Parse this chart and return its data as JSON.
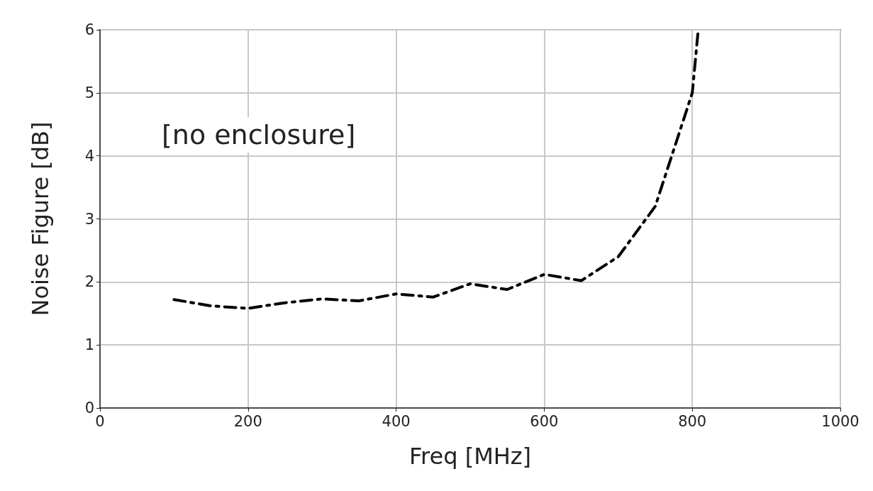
{
  "chart_data": {
    "type": "line",
    "xlabel": "Freq [MHz]",
    "ylabel": "Noise Figure [dB]",
    "annotations": [
      "[no enclosure]"
    ],
    "x": [
      100,
      150,
      200,
      250,
      300,
      350,
      400,
      450,
      500,
      550,
      600,
      650,
      700,
      750,
      800,
      808
    ],
    "series": [
      {
        "color": "#000000",
        "values": [
          1.72,
          1.62,
          1.58,
          1.67,
          1.73,
          1.7,
          1.81,
          1.76,
          1.97,
          1.88,
          2.12,
          2.02,
          2.4,
          3.2,
          5.0,
          6.0
        ]
      }
    ],
    "xlim": [
      0,
      1000
    ],
    "xticks": [
      0,
      200,
      400,
      600,
      800,
      1000
    ],
    "ylim": [
      0,
      6
    ],
    "yticks": [
      0,
      1,
      2,
      3,
      4,
      5,
      6
    ],
    "grid": true,
    "marker": "none",
    "line_style": "dashed"
  }
}
